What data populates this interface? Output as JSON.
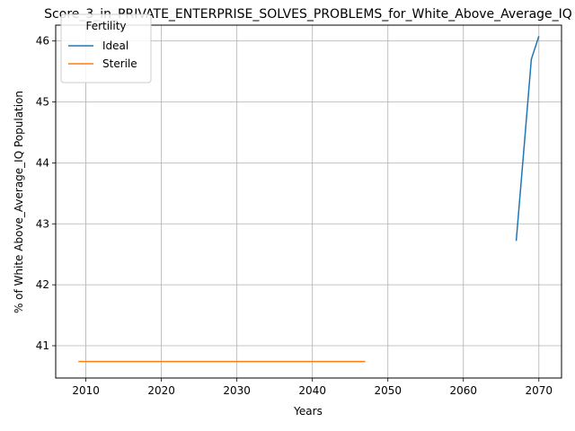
{
  "chart_data": {
    "type": "line",
    "title": "Score_3_in_PRIVATE_ENTERPRISE_SOLVES_PROBLEMS_for_White_Above_Average_IQ",
    "xlabel": "Years",
    "ylabel": "% of White Above_Average_IQ Population",
    "xlim": [
      2006,
      2073
    ],
    "ylim": [
      40.47,
      46.26
    ],
    "x_ticks": [
      2010,
      2020,
      2030,
      2040,
      2050,
      2060,
      2070
    ],
    "y_ticks": [
      41,
      42,
      43,
      44,
      45,
      46
    ],
    "grid": true,
    "legend": {
      "title": "Fertility",
      "position": "top-left"
    },
    "series": [
      {
        "name": "Ideal",
        "color": "#1f77b4",
        "x": [
          2067,
          2068,
          2069,
          2070
        ],
        "y": [
          42.72,
          44.2,
          45.7,
          46.08
        ]
      },
      {
        "name": "Sterile",
        "color": "#ff7f0e",
        "x": [
          2009,
          2047
        ],
        "y": [
          40.74,
          40.74
        ]
      }
    ]
  }
}
